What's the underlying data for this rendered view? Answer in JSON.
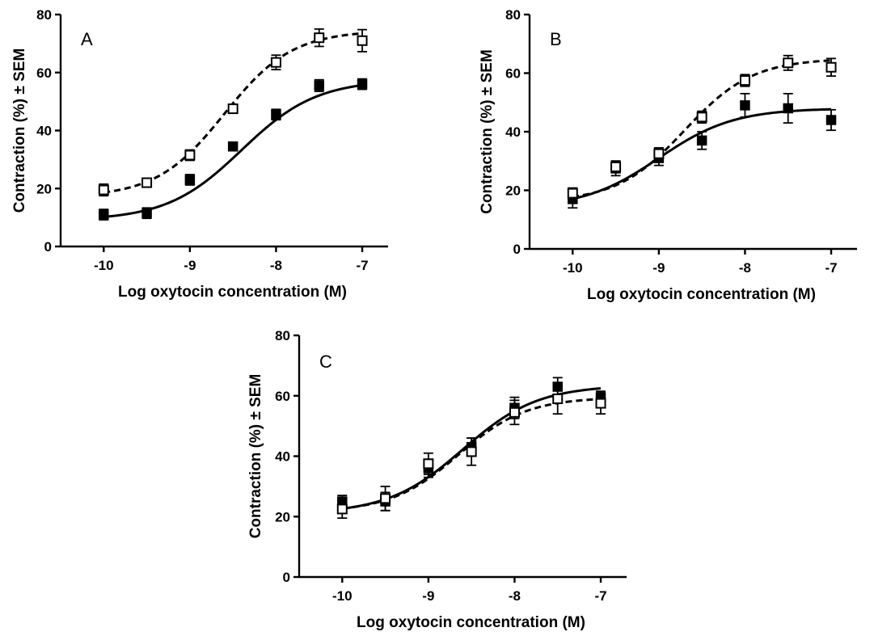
{
  "chart_data": [
    {
      "type": "scatter",
      "panel": "A",
      "xlabel": "Log oxytocin concentration (M)",
      "ylabel": "Contraction (%) ± SEM",
      "xlim": [
        -10.5,
        -6.7
      ],
      "ylim": [
        0,
        80
      ],
      "x_ticks": [
        "-10",
        "-9",
        "-8",
        "-7"
      ],
      "y_ticks": [
        "0",
        "20",
        "40",
        "60",
        "80"
      ],
      "grid": false,
      "series": [
        {
          "marker": "filled-square",
          "line": "solid",
          "x": [
            -10,
            -9.5,
            -9,
            -8.5,
            -8,
            -7.5,
            -7
          ],
          "y": [
            11,
            11.5,
            23,
            34.5,
            45.5,
            55.5,
            56
          ],
          "sem": [
            1.8,
            1.8,
            1.8,
            1.5,
            1.8,
            2.0,
            1.8
          ],
          "fit": {
            "bottom": 9,
            "top": 57.5,
            "logEC50": -8.4,
            "hill": 1.0
          }
        },
        {
          "marker": "open-square",
          "line": "dashed",
          "x": [
            -10,
            -9.5,
            -9,
            -8.5,
            -8,
            -7.5,
            -7
          ],
          "y": [
            19.5,
            22,
            31.5,
            47.5,
            63.5,
            72,
            71
          ],
          "sem": [
            2.0,
            1.5,
            1.8,
            1.5,
            2.5,
            3.0,
            3.8
          ],
          "fit": {
            "bottom": 17,
            "top": 74.5,
            "logEC50": -8.6,
            "hill": 1.1
          }
        }
      ]
    },
    {
      "type": "scatter",
      "panel": "B",
      "xlabel": "Log oxytocin concentration (M)",
      "ylabel": "Contraction (%) ± SEM",
      "xlim": [
        -10.5,
        -6.7
      ],
      "ylim": [
        0,
        80
      ],
      "x_ticks": [
        "-10",
        "-9",
        "-8",
        "-7"
      ],
      "y_ticks": [
        "0",
        "20",
        "40",
        "60",
        "80"
      ],
      "grid": false,
      "series": [
        {
          "marker": "filled-square",
          "line": "solid",
          "x": [
            -10,
            -9.5,
            -9,
            -8.5,
            -8,
            -7.5,
            -7
          ],
          "y": [
            17,
            27.5,
            31,
            37,
            49,
            48,
            44
          ],
          "sem": [
            3.0,
            2.5,
            2.5,
            3.0,
            4.0,
            5.0,
            3.5
          ],
          "fit": {
            "bottom": 14,
            "top": 48,
            "logEC50": -9.0,
            "hill": 1.0
          }
        },
        {
          "marker": "open-square",
          "line": "dashed",
          "x": [
            -10,
            -9.5,
            -9,
            -8.5,
            -8,
            -7.5,
            -7
          ],
          "y": [
            19,
            28,
            32.5,
            45,
            57.5,
            63.5,
            62
          ],
          "sem": [
            1.8,
            2.0,
            2.0,
            2.0,
            2.0,
            2.5,
            3.0
          ],
          "fit": {
            "bottom": 16,
            "top": 65,
            "logEC50": -8.7,
            "hill": 1.1
          }
        }
      ]
    },
    {
      "type": "scatter",
      "panel": "C",
      "xlabel": "Log oxytocin concentration (M)",
      "ylabel": "Contraction (%) ± SEM",
      "xlim": [
        -10.5,
        -6.7
      ],
      "ylim": [
        0,
        80
      ],
      "x_ticks": [
        "-10",
        "-9",
        "-8",
        "-7"
      ],
      "y_ticks": [
        "0",
        "20",
        "40",
        "60",
        "80"
      ],
      "grid": false,
      "series": [
        {
          "marker": "filled-square",
          "line": "solid",
          "x": [
            -10,
            -9.5,
            -9,
            -8.5,
            -8,
            -7.5,
            -7
          ],
          "y": [
            25,
            25,
            36,
            43,
            56,
            63,
            59.5
          ],
          "sem": [
            2.0,
            3.0,
            3.0,
            3.0,
            3.5,
            3.0,
            2.0
          ],
          "fit": {
            "bottom": 21,
            "top": 63.5,
            "logEC50": -8.6,
            "hill": 1.0
          }
        },
        {
          "marker": "open-square",
          "line": "dashed",
          "x": [
            -10,
            -9.5,
            -9,
            -8.5,
            -8,
            -7.5,
            -7
          ],
          "y": [
            22.5,
            26,
            37.5,
            41.5,
            54.5,
            59,
            57.5
          ],
          "sem": [
            3.0,
            4.0,
            3.5,
            4.5,
            4.0,
            5.0,
            3.5
          ],
          "fit": {
            "bottom": 21.5,
            "top": 59.5,
            "logEC50": -8.65,
            "hill": 1.1
          }
        }
      ]
    }
  ]
}
